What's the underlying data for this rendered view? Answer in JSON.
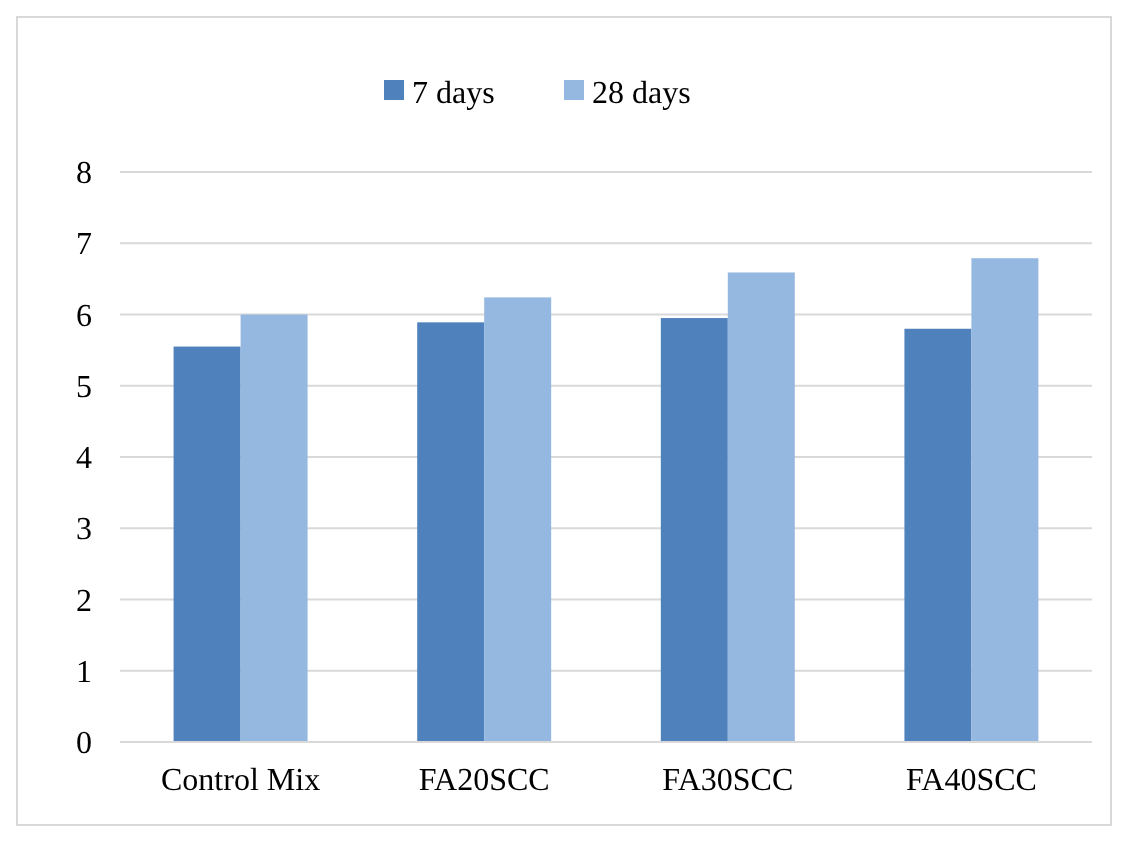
{
  "chart_data": {
    "type": "bar",
    "categories": [
      "Control Mix",
      "FA20SCC",
      "FA30SCC",
      "FA40SCC"
    ],
    "series": [
      {
        "name": "7 days",
        "color": "#4f81bd",
        "values": [
          5.55,
          5.89,
          5.95,
          5.8
        ]
      },
      {
        "name": "28 days",
        "color": "#95b8e0",
        "values": [
          6.0,
          6.24,
          6.59,
          6.79
        ]
      }
    ],
    "ylim": [
      0,
      8
    ],
    "yticks": [
      0,
      1,
      2,
      3,
      4,
      5,
      6,
      7,
      8
    ],
    "grid": "y",
    "legend": "top"
  }
}
